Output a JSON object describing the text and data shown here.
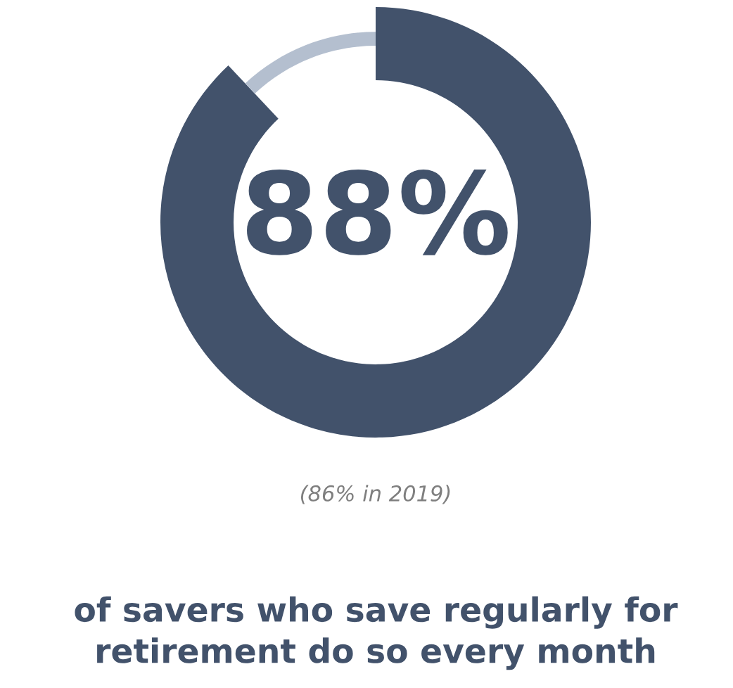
{
  "chart_data": {
    "type": "donut",
    "categories": [
      null,
      null
    ],
    "values": [
      88,
      12
    ],
    "colors": [
      "#42526b",
      "#b4bfcf"
    ],
    "value_labels": [
      "88%",
      null
    ],
    "annotations": [
      "(86% in 2019)",
      "of savers who save regularly for\nretirement do so every month"
    ]
  }
}
